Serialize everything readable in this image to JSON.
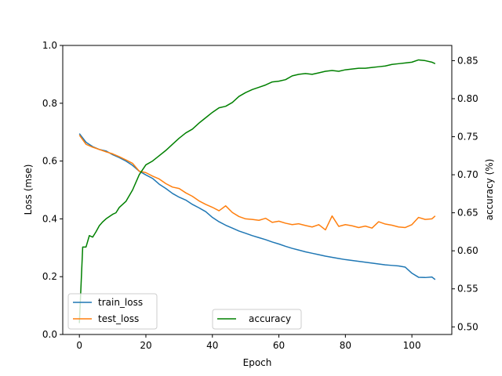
{
  "chart_data": {
    "type": "line",
    "xlabel": "Epoch",
    "ylabel_left": "Loss (mse)",
    "ylabel_right": "accuracy (%)",
    "xlim": [
      -5,
      112
    ],
    "ylim_left": [
      0.0,
      1.0
    ],
    "ylim_right": [
      0.49,
      0.87
    ],
    "x_ticks": [
      0,
      20,
      40,
      60,
      80,
      100
    ],
    "y_ticks_left": [
      "0.0",
      "0.2",
      "0.4",
      "0.6",
      "0.8",
      "1.0"
    ],
    "y_ticks_right": [
      "0.50",
      "0.55",
      "0.60",
      "0.65",
      "0.70",
      "0.75",
      "0.80",
      "0.85"
    ],
    "legend_left_position": "lower-left",
    "legend_right_position": "lower-center",
    "grid": false,
    "series": [
      {
        "name": "train_loss",
        "axis": "left",
        "color": "#1f77b4",
        "x": [
          0,
          2,
          4,
          6,
          8,
          10,
          12,
          14,
          16,
          18,
          20,
          22,
          24,
          26,
          28,
          30,
          32,
          34,
          36,
          38,
          40,
          42,
          44,
          46,
          48,
          50,
          52,
          54,
          56,
          58,
          60,
          62,
          64,
          66,
          68,
          70,
          72,
          74,
          76,
          78,
          80,
          82,
          84,
          86,
          88,
          90,
          92,
          94,
          96,
          98,
          100,
          102,
          104,
          106,
          107
        ],
        "values": [
          0.695,
          0.665,
          0.65,
          0.64,
          0.635,
          0.622,
          0.612,
          0.6,
          0.585,
          0.565,
          0.552,
          0.54,
          0.52,
          0.505,
          0.488,
          0.475,
          0.465,
          0.45,
          0.438,
          0.425,
          0.405,
          0.39,
          0.378,
          0.368,
          0.358,
          0.35,
          0.342,
          0.335,
          0.328,
          0.32,
          0.313,
          0.305,
          0.298,
          0.292,
          0.286,
          0.281,
          0.276,
          0.271,
          0.267,
          0.263,
          0.259,
          0.256,
          0.253,
          0.25,
          0.247,
          0.244,
          0.241,
          0.239,
          0.237,
          0.233,
          0.212,
          0.198,
          0.197,
          0.199,
          0.19
        ]
      },
      {
        "name": "test_loss",
        "axis": "left",
        "color": "#ff7f0e",
        "x": [
          0,
          2,
          4,
          6,
          8,
          10,
          12,
          14,
          16,
          18,
          20,
          22,
          24,
          26,
          28,
          30,
          32,
          34,
          36,
          38,
          40,
          42,
          44,
          46,
          48,
          50,
          52,
          54,
          56,
          58,
          60,
          62,
          64,
          66,
          68,
          70,
          72,
          74,
          76,
          78,
          80,
          82,
          84,
          86,
          88,
          90,
          92,
          94,
          96,
          98,
          100,
          102,
          104,
          106,
          107
        ],
        "values": [
          0.69,
          0.658,
          0.648,
          0.64,
          0.632,
          0.625,
          0.615,
          0.604,
          0.592,
          0.565,
          0.56,
          0.548,
          0.538,
          0.522,
          0.51,
          0.505,
          0.49,
          0.478,
          0.462,
          0.45,
          0.44,
          0.428,
          0.445,
          0.422,
          0.408,
          0.4,
          0.398,
          0.395,
          0.402,
          0.388,
          0.392,
          0.385,
          0.38,
          0.383,
          0.377,
          0.372,
          0.38,
          0.362,
          0.41,
          0.374,
          0.38,
          0.376,
          0.37,
          0.375,
          0.368,
          0.39,
          0.382,
          0.378,
          0.372,
          0.37,
          0.38,
          0.405,
          0.398,
          0.4,
          0.41
        ]
      },
      {
        "name": "accuracy",
        "axis": "right",
        "color": "#008000",
        "x": [
          0,
          1,
          2,
          3,
          4,
          5,
          6,
          7,
          8,
          9,
          10,
          11,
          12,
          14,
          16,
          18,
          20,
          22,
          24,
          26,
          28,
          30,
          32,
          34,
          36,
          38,
          40,
          42,
          44,
          46,
          48,
          50,
          52,
          54,
          56,
          58,
          60,
          62,
          64,
          66,
          68,
          70,
          72,
          74,
          76,
          78,
          80,
          82,
          84,
          86,
          88,
          90,
          92,
          94,
          96,
          98,
          100,
          102,
          104,
          106,
          107
        ],
        "values": [
          0.505,
          0.605,
          0.605,
          0.62,
          0.618,
          0.625,
          0.633,
          0.638,
          0.642,
          0.645,
          0.648,
          0.65,
          0.657,
          0.665,
          0.68,
          0.7,
          0.713,
          0.718,
          0.725,
          0.732,
          0.74,
          0.748,
          0.755,
          0.76,
          0.768,
          0.775,
          0.782,
          0.788,
          0.79,
          0.795,
          0.803,
          0.808,
          0.812,
          0.815,
          0.818,
          0.822,
          0.823,
          0.825,
          0.83,
          0.832,
          0.833,
          0.832,
          0.834,
          0.836,
          0.837,
          0.836,
          0.838,
          0.839,
          0.84,
          0.84,
          0.841,
          0.842,
          0.843,
          0.845,
          0.846,
          0.847,
          0.848,
          0.851,
          0.85,
          0.848,
          0.846
        ]
      }
    ]
  }
}
